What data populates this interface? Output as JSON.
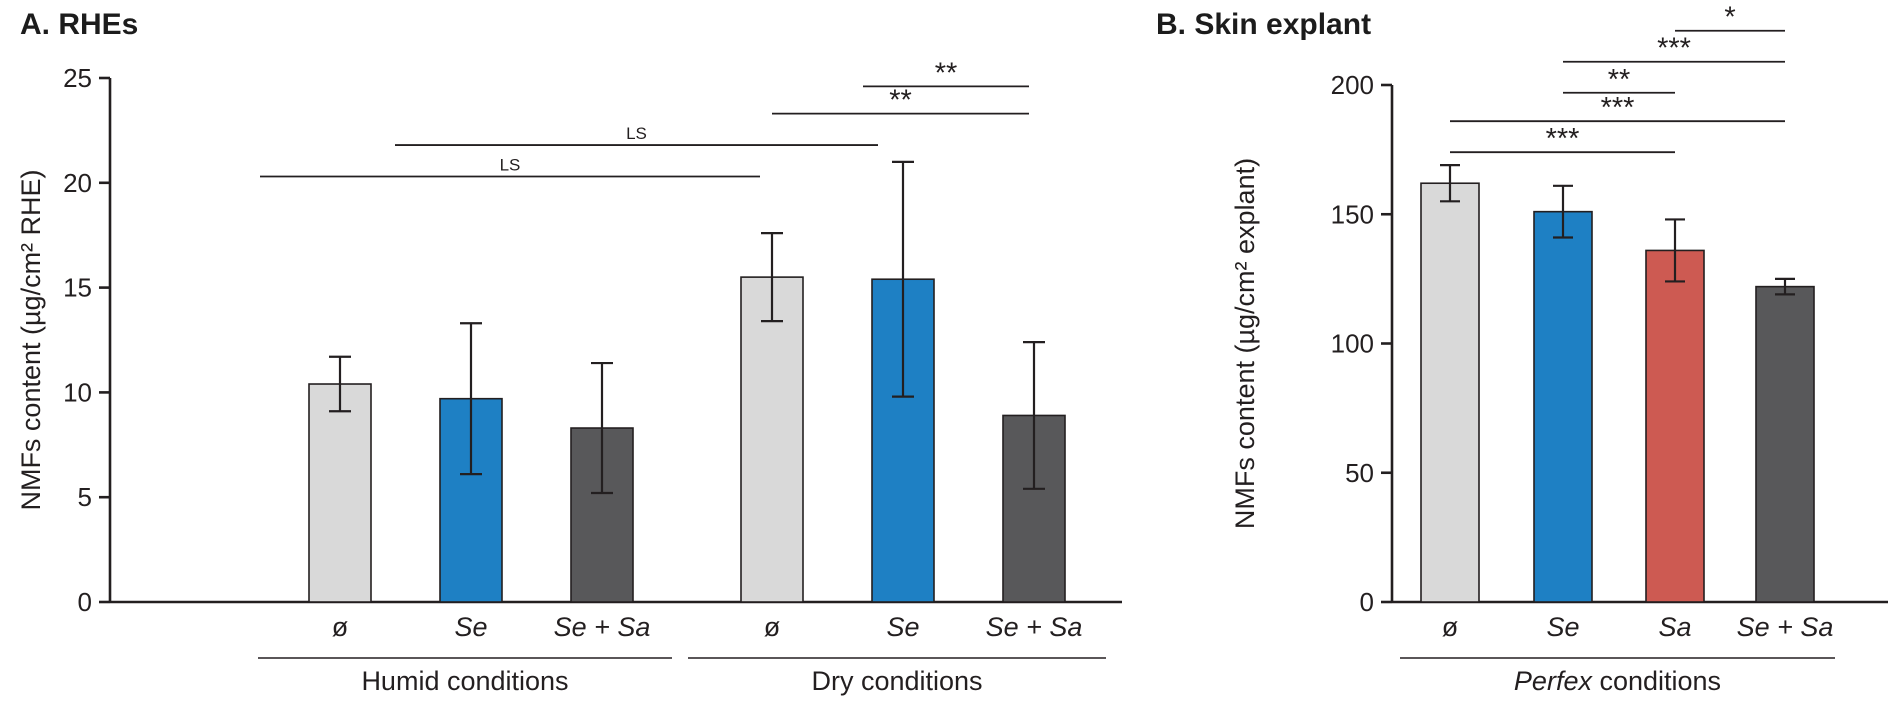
{
  "style": {
    "background": "#ffffff",
    "axis_color": "#231f20",
    "bar_colors": {
      "gray_light": "#d9d9d9",
      "blue": "#1e80c4",
      "red": "#cd5a52",
      "gray_dark": "#58585a"
    }
  },
  "chart_data": [
    {
      "type": "bar",
      "id": "A",
      "title": "A. RHEs",
      "ylabel": "NMFs content (µg/cm² RHE)",
      "xlabel": "",
      "ylim": [
        0,
        25
      ],
      "yticks": [
        0,
        5,
        10,
        15,
        20,
        25
      ],
      "grid": false,
      "legend": null,
      "groups": [
        {
          "label": "Humid conditions"
        },
        {
          "label": "Dry conditions"
        }
      ],
      "bars": [
        {
          "group": 0,
          "label": "ø",
          "italic": false,
          "value": 10.4,
          "err": 1.3,
          "color": "#d9d9d9"
        },
        {
          "group": 0,
          "label": "Se",
          "italic": true,
          "value": 9.7,
          "err": 3.6,
          "color": "#1e80c4"
        },
        {
          "group": 0,
          "label": "Se + Sa",
          "italic": true,
          "value": 8.3,
          "err": 3.1,
          "color": "#58585a"
        },
        {
          "group": 1,
          "label": "ø",
          "italic": false,
          "value": 15.5,
          "err": 2.1,
          "color": "#d9d9d9"
        },
        {
          "group": 1,
          "label": "Se",
          "italic": true,
          "value": 15.4,
          "err": 5.6,
          "color": "#1e80c4"
        },
        {
          "group": 1,
          "label": "Se + Sa",
          "italic": true,
          "value": 8.9,
          "err": 3.5,
          "color": "#58585a"
        }
      ],
      "significance_brackets": [
        {
          "from": 0,
          "to": 3,
          "y": 20.3,
          "label": "LS"
        },
        {
          "from": 1,
          "to": 4,
          "y": 21.8,
          "label": "LS"
        },
        {
          "from": 3,
          "to": 5,
          "y": 23.3,
          "label": "**"
        },
        {
          "from": 4,
          "to": 5,
          "y": 24.6,
          "label": "**"
        }
      ]
    },
    {
      "type": "bar",
      "id": "B",
      "title": "B. Skin explant",
      "ylabel": "NMFs content (µg/cm² explant)",
      "xlabel": "",
      "ylim": [
        0,
        200
      ],
      "yticks": [
        0,
        50,
        100,
        150,
        200
      ],
      "grid": false,
      "legend": null,
      "groups": [
        {
          "label": "Perfex conditions",
          "label_parts": [
            {
              "text": "Perfex",
              "italic": true
            },
            {
              "text": " conditions",
              "italic": false
            }
          ]
        }
      ],
      "bars": [
        {
          "group": 0,
          "label": "ø",
          "italic": false,
          "value": 162,
          "err": 7,
          "color": "#d9d9d9"
        },
        {
          "group": 0,
          "label": "Se",
          "italic": true,
          "value": 151,
          "err": 10,
          "color": "#1e80c4"
        },
        {
          "group": 0,
          "label": "Sa",
          "italic": true,
          "value": 136,
          "err": 12,
          "color": "#cd5a52"
        },
        {
          "group": 0,
          "label": "Se + Sa",
          "italic": true,
          "value": 122,
          "err": 3,
          "color": "#58585a"
        }
      ],
      "significance_brackets": [
        {
          "from": 0,
          "to": 2,
          "y": 174,
          "label": "***"
        },
        {
          "from": 0,
          "to": 3,
          "y": 186,
          "label": "***"
        },
        {
          "from": 1,
          "to": 2,
          "y": 197,
          "label": "**"
        },
        {
          "from": 1,
          "to": 3,
          "y": 209,
          "label": "***"
        },
        {
          "from": 2,
          "to": 3,
          "y": 221,
          "label": "*"
        }
      ]
    }
  ]
}
